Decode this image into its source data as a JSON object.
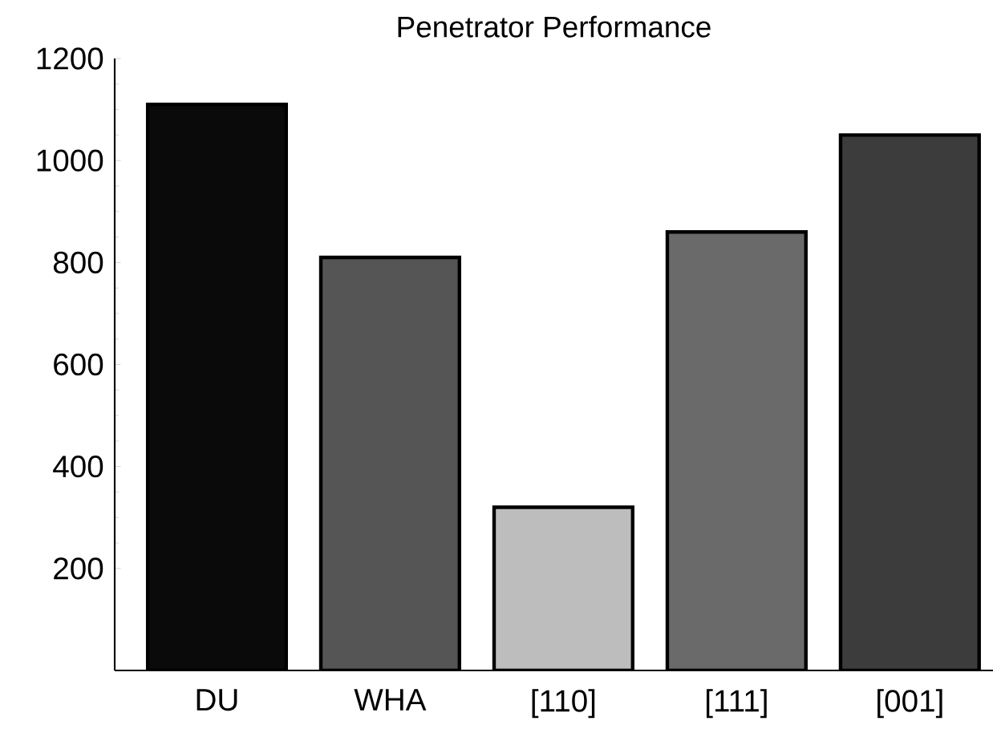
{
  "chart_data": {
    "type": "bar",
    "title": "Penetrator Performance",
    "categories": [
      "DU",
      "WHA",
      "[110]",
      "[111]",
      "[001]"
    ],
    "values": [
      1110,
      810,
      320,
      860,
      1050
    ],
    "colors": [
      "#0a0a0a",
      "#555555",
      "#bdbdbd",
      "#6a6a6a",
      "#3c3c3c"
    ],
    "ylim": [
      0,
      1200
    ],
    "yticks": [
      200,
      400,
      600,
      800,
      1000,
      1200
    ]
  }
}
